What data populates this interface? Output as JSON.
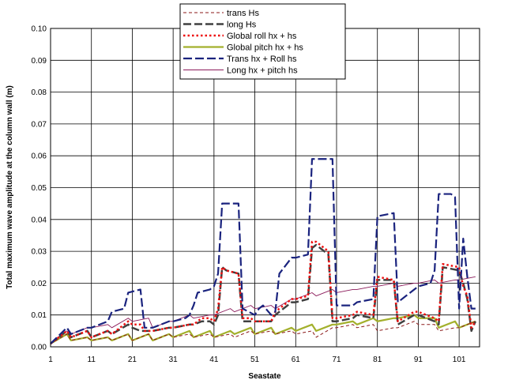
{
  "chart_data": {
    "type": "line",
    "title": "",
    "xlabel": "Seastate",
    "ylabel": "Total maximum wave amplitude at the column wall (m)",
    "xlim": [
      1,
      106
    ],
    "ylim": [
      0,
      0.1
    ],
    "x_ticks": [
      1,
      11,
      21,
      31,
      41,
      51,
      61,
      71,
      81,
      91,
      101
    ],
    "y_ticks": [
      "0.00",
      "0.01",
      "0.02",
      "0.03",
      "0.04",
      "0.05",
      "0.06",
      "0.07",
      "0.08",
      "0.09",
      "0.10"
    ],
    "grid": true,
    "legend_position": "top-center",
    "series": [
      {
        "name": "trans Hs",
        "color": "#8b1a1a",
        "dash": "short-dash",
        "points": [
          [
            1,
            0.001
          ],
          [
            5,
            0.004
          ],
          [
            6,
            0.002
          ],
          [
            10,
            0.003
          ],
          [
            11,
            0.002
          ],
          [
            15,
            0.003
          ],
          [
            16,
            0.002
          ],
          [
            20,
            0.004
          ],
          [
            21,
            0.002
          ],
          [
            25,
            0.004
          ],
          [
            26,
            0.002
          ],
          [
            30,
            0.004
          ],
          [
            31,
            0.003
          ],
          [
            35,
            0.004
          ],
          [
            36,
            0.003
          ],
          [
            40,
            0.004
          ],
          [
            41,
            0.003
          ],
          [
            45,
            0.004
          ],
          [
            46,
            0.003
          ],
          [
            50,
            0.005
          ],
          [
            51,
            0.004
          ],
          [
            55,
            0.005
          ],
          [
            56,
            0.004
          ],
          [
            60,
            0.005
          ],
          [
            61,
            0.004
          ],
          [
            65,
            0.005
          ],
          [
            66,
            0.003
          ],
          [
            70,
            0.006
          ],
          [
            71,
            0.006
          ],
          [
            75,
            0.007
          ],
          [
            76,
            0.006
          ],
          [
            80,
            0.007
          ],
          [
            81,
            0.005
          ],
          [
            85,
            0.006
          ],
          [
            86,
            0.006
          ],
          [
            90,
            0.008
          ],
          [
            91,
            0.007
          ],
          [
            95,
            0.007
          ],
          [
            96,
            0.005
          ],
          [
            100,
            0.006
          ],
          [
            101,
            0.006
          ],
          [
            105,
            0.008
          ]
        ]
      },
      {
        "name": "long Hs",
        "color": "#404040",
        "dash": "long-dash",
        "points": [
          [
            1,
            0.001
          ],
          [
            5,
            0.005
          ],
          [
            6,
            0.003
          ],
          [
            10,
            0.005
          ],
          [
            11,
            0.003
          ],
          [
            15,
            0.005
          ],
          [
            16,
            0.004
          ],
          [
            20,
            0.007
          ],
          [
            21,
            0.006
          ],
          [
            23,
            0.005
          ],
          [
            24,
            0.005
          ],
          [
            26,
            0.005
          ],
          [
            30,
            0.006
          ],
          [
            31,
            0.006
          ],
          [
            35,
            0.007
          ],
          [
            36,
            0.007
          ],
          [
            38,
            0.008
          ],
          [
            40,
            0.008
          ],
          [
            41,
            0.007
          ],
          [
            42,
            0.01
          ],
          [
            43,
            0.025
          ],
          [
            44,
            0.024
          ],
          [
            47,
            0.023
          ],
          [
            48,
            0.008
          ],
          [
            50,
            0.008
          ],
          [
            51,
            0.008
          ],
          [
            55,
            0.008
          ],
          [
            56,
            0.01
          ],
          [
            60,
            0.014
          ],
          [
            61,
            0.014
          ],
          [
            64,
            0.015
          ],
          [
            65,
            0.031
          ],
          [
            66,
            0.032
          ],
          [
            68,
            0.03
          ],
          [
            69,
            0.029
          ],
          [
            70,
            0.008
          ],
          [
            71,
            0.008
          ],
          [
            75,
            0.009
          ],
          [
            76,
            0.01
          ],
          [
            80,
            0.009
          ],
          [
            81,
            0.021
          ],
          [
            85,
            0.021
          ],
          [
            86,
            0.007
          ],
          [
            90,
            0.01
          ],
          [
            91,
            0.01
          ],
          [
            95,
            0.008
          ],
          [
            96,
            0.007
          ],
          [
            97,
            0.025
          ],
          [
            101,
            0.024
          ],
          [
            102,
            0.02
          ],
          [
            103,
            0.015
          ],
          [
            104,
            0.005
          ],
          [
            105,
            0.008
          ]
        ]
      },
      {
        "name": "Global roll hx + hs",
        "color": "#ee1111",
        "dash": "dots",
        "points": [
          [
            1,
            0.001
          ],
          [
            5,
            0.005
          ],
          [
            6,
            0.003
          ],
          [
            10,
            0.005
          ],
          [
            11,
            0.003
          ],
          [
            15,
            0.005
          ],
          [
            16,
            0.004
          ],
          [
            20,
            0.008
          ],
          [
            21,
            0.007
          ],
          [
            23,
            0.007
          ],
          [
            24,
            0.005
          ],
          [
            26,
            0.005
          ],
          [
            30,
            0.006
          ],
          [
            31,
            0.006
          ],
          [
            35,
            0.007
          ],
          [
            36,
            0.007
          ],
          [
            38,
            0.009
          ],
          [
            40,
            0.009
          ],
          [
            41,
            0.008
          ],
          [
            42,
            0.012
          ],
          [
            43,
            0.025
          ],
          [
            44,
            0.024
          ],
          [
            47,
            0.023
          ],
          [
            48,
            0.009
          ],
          [
            50,
            0.009
          ],
          [
            51,
            0.008
          ],
          [
            55,
            0.008
          ],
          [
            56,
            0.011
          ],
          [
            60,
            0.015
          ],
          [
            61,
            0.015
          ],
          [
            64,
            0.016
          ],
          [
            65,
            0.033
          ],
          [
            66,
            0.033
          ],
          [
            68,
            0.031
          ],
          [
            69,
            0.03
          ],
          [
            70,
            0.009
          ],
          [
            71,
            0.009
          ],
          [
            75,
            0.01
          ],
          [
            76,
            0.011
          ],
          [
            80,
            0.01
          ],
          [
            81,
            0.022
          ],
          [
            85,
            0.021
          ],
          [
            86,
            0.008
          ],
          [
            90,
            0.011
          ],
          [
            91,
            0.011
          ],
          [
            95,
            0.009
          ],
          [
            96,
            0.008
          ],
          [
            97,
            0.026
          ],
          [
            101,
            0.025
          ],
          [
            102,
            0.019
          ],
          [
            103,
            0.016
          ],
          [
            104,
            0.006
          ],
          [
            105,
            0.008
          ]
        ]
      },
      {
        "name": "Global  pitch hx + hs",
        "color": "#a3b02c",
        "dash": "solid-thick",
        "points": [
          [
            1,
            0.001
          ],
          [
            5,
            0.004
          ],
          [
            6,
            0.002
          ],
          [
            10,
            0.003
          ],
          [
            11,
            0.002
          ],
          [
            15,
            0.003
          ],
          [
            16,
            0.002
          ],
          [
            20,
            0.004
          ],
          [
            21,
            0.002
          ],
          [
            25,
            0.004
          ],
          [
            26,
            0.002
          ],
          [
            30,
            0.004
          ],
          [
            31,
            0.003
          ],
          [
            35,
            0.005
          ],
          [
            36,
            0.003
          ],
          [
            40,
            0.005
          ],
          [
            41,
            0.003
          ],
          [
            45,
            0.005
          ],
          [
            46,
            0.004
          ],
          [
            50,
            0.006
          ],
          [
            51,
            0.004
          ],
          [
            55,
            0.006
          ],
          [
            56,
            0.004
          ],
          [
            60,
            0.006
          ],
          [
            61,
            0.005
          ],
          [
            65,
            0.007
          ],
          [
            66,
            0.005
          ],
          [
            70,
            0.007
          ],
          [
            71,
            0.007
          ],
          [
            75,
            0.008
          ],
          [
            76,
            0.007
          ],
          [
            80,
            0.009
          ],
          [
            81,
            0.008
          ],
          [
            85,
            0.009
          ],
          [
            86,
            0.009
          ],
          [
            90,
            0.01
          ],
          [
            91,
            0.009
          ],
          [
            95,
            0.009
          ],
          [
            96,
            0.006
          ],
          [
            100,
            0.008
          ],
          [
            101,
            0.006
          ],
          [
            105,
            0.008
          ]
        ]
      },
      {
        "name": "Trans hx + Roll hs",
        "color": "#1a237e",
        "dash": "long-dash-thick",
        "points": [
          [
            1,
            0.001
          ],
          [
            5,
            0.006
          ],
          [
            6,
            0.004
          ],
          [
            10,
            0.006
          ],
          [
            11,
            0.006
          ],
          [
            15,
            0.008
          ],
          [
            16,
            0.011
          ],
          [
            19,
            0.012
          ],
          [
            20,
            0.017
          ],
          [
            23,
            0.018
          ],
          [
            24,
            0.006
          ],
          [
            26,
            0.006
          ],
          [
            30,
            0.008
          ],
          [
            31,
            0.008
          ],
          [
            34,
            0.009
          ],
          [
            35,
            0.01
          ],
          [
            36,
            0.013
          ],
          [
            37,
            0.017
          ],
          [
            40,
            0.018
          ],
          [
            41,
            0.019
          ],
          [
            42,
            0.023
          ],
          [
            43,
            0.045
          ],
          [
            47,
            0.045
          ],
          [
            48,
            0.012
          ],
          [
            51,
            0.01
          ],
          [
            52,
            0.012
          ],
          [
            53,
            0.013
          ],
          [
            55,
            0.01
          ],
          [
            56,
            0.011
          ],
          [
            57,
            0.023
          ],
          [
            60,
            0.028
          ],
          [
            61,
            0.028
          ],
          [
            64,
            0.029
          ],
          [
            65,
            0.059
          ],
          [
            70,
            0.059
          ],
          [
            71,
            0.013
          ],
          [
            75,
            0.013
          ],
          [
            76,
            0.014
          ],
          [
            80,
            0.015
          ],
          [
            81,
            0.041
          ],
          [
            85,
            0.042
          ],
          [
            86,
            0.014
          ],
          [
            90,
            0.018
          ],
          [
            91,
            0.019
          ],
          [
            94,
            0.02
          ],
          [
            95,
            0.024
          ],
          [
            96,
            0.048
          ],
          [
            99,
            0.048
          ],
          [
            100,
            0.047
          ],
          [
            101,
            0.012
          ],
          [
            102,
            0.034
          ],
          [
            103,
            0.022
          ],
          [
            104,
            0.012
          ],
          [
            105,
            0.012
          ]
        ]
      },
      {
        "name": "Long hx + pitch  hs",
        "color": "#8b1a5a",
        "dash": "solid-thin",
        "points": [
          [
            1,
            0.001
          ],
          [
            5,
            0.005
          ],
          [
            6,
            0.004
          ],
          [
            10,
            0.006
          ],
          [
            11,
            0.006
          ],
          [
            15,
            0.007
          ],
          [
            16,
            0.006
          ],
          [
            20,
            0.009
          ],
          [
            21,
            0.008
          ],
          [
            25,
            0.009
          ],
          [
            26,
            0.006
          ],
          [
            30,
            0.008
          ],
          [
            31,
            0.008
          ],
          [
            35,
            0.01
          ],
          [
            36,
            0.009
          ],
          [
            40,
            0.01
          ],
          [
            41,
            0.01
          ],
          [
            45,
            0.012
          ],
          [
            46,
            0.011
          ],
          [
            50,
            0.013
          ],
          [
            51,
            0.012
          ],
          [
            55,
            0.013
          ],
          [
            56,
            0.012
          ],
          [
            60,
            0.015
          ],
          [
            61,
            0.015
          ],
          [
            65,
            0.017
          ],
          [
            66,
            0.016
          ],
          [
            70,
            0.018
          ],
          [
            71,
            0.017
          ],
          [
            75,
            0.018
          ],
          [
            76,
            0.018
          ],
          [
            80,
            0.019
          ],
          [
            81,
            0.019
          ],
          [
            85,
            0.02
          ],
          [
            86,
            0.019
          ],
          [
            90,
            0.02
          ],
          [
            91,
            0.02
          ],
          [
            95,
            0.021
          ],
          [
            96,
            0.02
          ],
          [
            100,
            0.021
          ],
          [
            101,
            0.021
          ],
          [
            105,
            0.022
          ]
        ]
      }
    ]
  }
}
